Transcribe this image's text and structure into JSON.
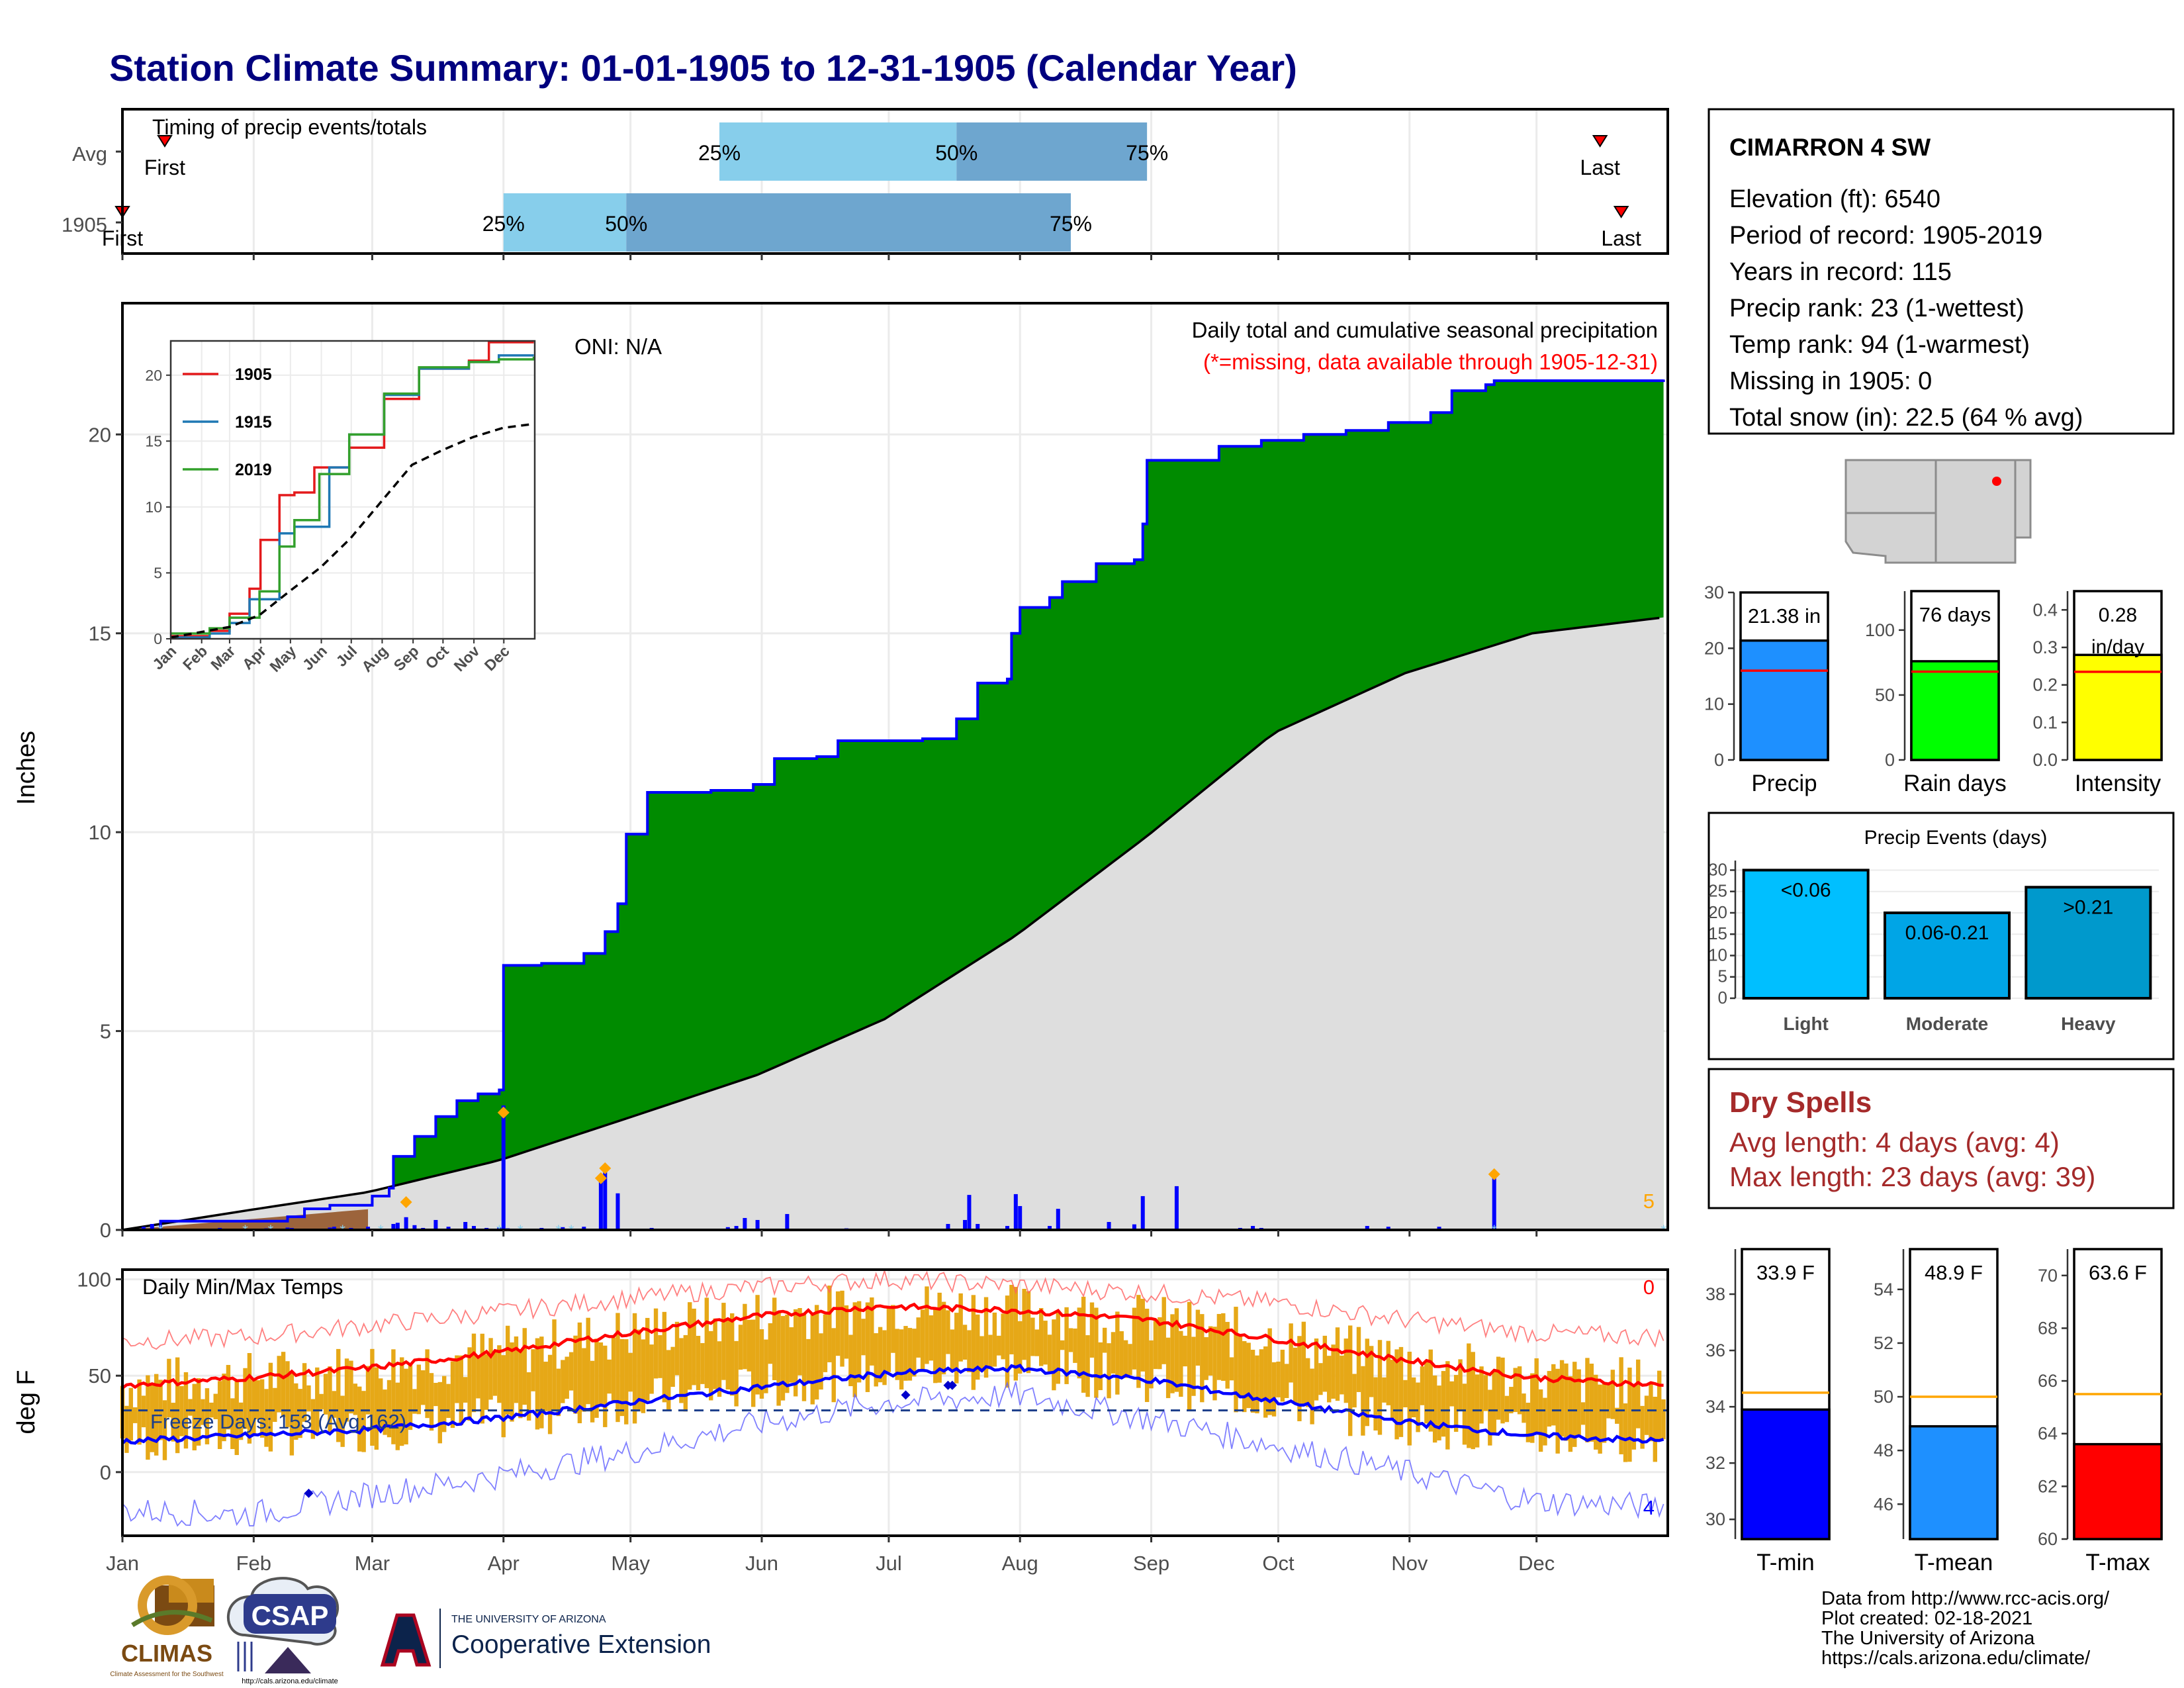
{
  "title": "Station Climate Summary: 01-01-1905 to 12-31-1905 (Calendar Year)",
  "colors": {
    "title": "#00007f",
    "green": "#008b00",
    "blue": "#0000ff",
    "grey": "#dedede",
    "q1": "#87ceeb",
    "q2": "#6ea6cf",
    "orange": "#ffa500",
    "red": "#ff0000",
    "gold": "#e6a817",
    "drySpell": "#a52a2a"
  },
  "timing": {
    "label": "Timing of precip events/totals",
    "rows": [
      {
        "name": "Avg",
        "first": "01-11",
        "last": "12-16",
        "q25": "05-22",
        "q50": "07-17",
        "q75": "08-31",
        "firstLabel": "First",
        "lastLabel": "Last"
      },
      {
        "name": "1905",
        "first": "01-01",
        "last": "12-21",
        "q25": "04-01",
        "q50": "04-30",
        "q75": "08-13",
        "firstLabel": "First",
        "lastLabel": "Last"
      }
    ],
    "pctLabels": [
      "25%",
      "50%",
      "75%"
    ]
  },
  "months": [
    "Jan",
    "Feb",
    "Mar",
    "Apr",
    "May",
    "Jun",
    "Jul",
    "Aug",
    "Sep",
    "Oct",
    "Nov",
    "Dec"
  ],
  "precip": {
    "ylabel": "Inches",
    "yticks": [
      0,
      5,
      10,
      15,
      20
    ],
    "ylim": [
      0,
      23.3
    ],
    "caption1": "Daily total and cumulative seasonal precipitation",
    "caption2": "(*=missing, data available through 1905-12-31)",
    "oni": "ONI: N/A",
    "cornerCount": "5",
    "chart_data": {
      "type": "area",
      "cumulative_1905": [
        [
          1,
          0
        ],
        [
          10,
          0.22
        ],
        [
          40,
          0.33
        ],
        [
          44,
          0.53
        ],
        [
          50,
          0.62
        ],
        [
          60,
          0.85
        ],
        [
          64,
          1.05
        ],
        [
          65,
          1.85
        ],
        [
          70,
          2.35
        ],
        [
          75,
          2.85
        ],
        [
          80,
          3.25
        ],
        [
          85,
          3.42
        ],
        [
          90,
          3.52
        ],
        [
          91,
          6.65
        ],
        [
          100,
          6.7
        ],
        [
          110,
          6.95
        ],
        [
          115,
          7.5
        ],
        [
          118,
          8.2
        ],
        [
          120,
          9.95
        ],
        [
          125,
          11.0
        ],
        [
          140,
          11.05
        ],
        [
          150,
          11.2
        ],
        [
          155,
          11.85
        ],
        [
          165,
          11.9
        ],
        [
          170,
          12.3
        ],
        [
          190,
          12.35
        ],
        [
          198,
          12.85
        ],
        [
          203,
          13.75
        ],
        [
          210,
          13.85
        ],
        [
          211,
          15.0
        ],
        [
          213,
          15.65
        ],
        [
          220,
          15.9
        ],
        [
          223,
          16.3
        ],
        [
          231,
          16.75
        ],
        [
          240,
          16.85
        ],
        [
          242,
          17.75
        ],
        [
          243,
          19.35
        ],
        [
          260,
          19.7
        ],
        [
          270,
          19.85
        ],
        [
          280,
          20.0
        ],
        [
          290,
          20.1
        ],
        [
          300,
          20.3
        ],
        [
          310,
          20.55
        ],
        [
          315,
          21.1
        ],
        [
          323,
          21.25
        ],
        [
          325,
          21.35
        ],
        [
          365,
          21.38
        ]
      ],
      "daily_bars": [
        [
          1,
          0.02
        ],
        [
          6,
          0.08
        ],
        [
          8,
          0.15
        ],
        [
          22,
          0.03
        ],
        [
          24,
          0.05
        ],
        [
          30,
          0.03
        ],
        [
          35,
          0.04
        ],
        [
          40,
          0.06
        ],
        [
          41,
          0.05
        ],
        [
          45,
          0.03
        ],
        [
          50,
          0.06
        ],
        [
          51,
          0.08
        ],
        [
          55,
          0.05
        ],
        [
          59,
          0.08
        ],
        [
          65,
          0.15
        ],
        [
          66,
          0.18
        ],
        [
          68,
          0.32
        ],
        [
          70,
          0.12
        ],
        [
          72,
          0.05
        ],
        [
          75,
          0.25
        ],
        [
          78,
          0.08
        ],
        [
          80,
          0.03
        ],
        [
          82,
          0.2
        ],
        [
          84,
          0.1
        ],
        [
          87,
          0.05
        ],
        [
          90,
          0.06
        ],
        [
          91,
          3.13
        ],
        [
          92,
          0.04
        ],
        [
          100,
          0.05
        ],
        [
          105,
          0.07
        ],
        [
          110,
          0.08
        ],
        [
          114,
          1.3
        ],
        [
          115,
          1.5
        ],
        [
          118,
          0.92
        ],
        [
          126,
          0.05
        ],
        [
          130,
          0.03
        ],
        [
          136,
          0.02
        ],
        [
          144,
          0.07
        ],
        [
          146,
          0.1
        ],
        [
          148,
          0.3
        ],
        [
          151,
          0.25
        ],
        [
          158,
          0.4
        ],
        [
          172,
          0.04
        ],
        [
          196,
          0.15
        ],
        [
          200,
          0.25
        ],
        [
          201,
          0.88
        ],
        [
          203,
          0.15
        ],
        [
          210,
          0.1
        ],
        [
          212,
          0.9
        ],
        [
          213,
          0.6
        ],
        [
          220,
          0.1
        ],
        [
          222,
          0.53
        ],
        [
          234,
          0.2
        ],
        [
          240,
          0.14
        ],
        [
          242,
          0.85
        ],
        [
          250,
          1.1
        ],
        [
          265,
          0.05
        ],
        [
          268,
          0.1
        ],
        [
          270,
          0.05
        ],
        [
          295,
          0.1
        ],
        [
          300,
          0.08
        ],
        [
          312,
          0.08
        ],
        [
          325,
          1.35
        ]
      ],
      "normal_cumulative": [
        [
          1,
          0
        ],
        [
          31,
          0.5
        ],
        [
          59,
          0.95
        ],
        [
          90,
          1.75
        ],
        [
          120,
          2.8
        ],
        [
          151,
          3.9
        ],
        [
          181,
          5.3
        ],
        [
          212,
          7.4
        ],
        [
          243,
          9.9
        ],
        [
          273,
          12.5
        ],
        [
          304,
          14.0
        ],
        [
          334,
          15.0
        ],
        [
          365,
          15.4
        ]
      ]
    },
    "markers": [
      [
        68,
        0.7
      ],
      [
        91,
        2.95
      ],
      [
        114,
        1.3
      ],
      [
        115,
        1.55
      ],
      [
        325,
        1.4
      ]
    ],
    "inset": {
      "yticks": [
        0,
        5,
        10,
        15,
        20
      ],
      "legend": [
        "1905",
        "1915",
        "2019"
      ],
      "series": [
        {
          "name": "1905",
          "color": "#e31a1c",
          "values": [
            [
              1,
              0.2
            ],
            [
              40,
              0.6
            ],
            [
              60,
              1.9
            ],
            [
              80,
              3.8
            ],
            [
              91,
              7.5
            ],
            [
              110,
              10.9
            ],
            [
              125,
              11.1
            ],
            [
              145,
              13.0
            ],
            [
              180,
              14.5
            ],
            [
              215,
              18.2
            ],
            [
              250,
              20.5
            ],
            [
              300,
              21.1
            ],
            [
              320,
              22.5
            ],
            [
              365,
              22.5
            ]
          ]
        },
        {
          "name": "1915",
          "color": "#1f78b4",
          "values": [
            [
              1,
              0.1
            ],
            [
              40,
              0.4
            ],
            [
              60,
              1.2
            ],
            [
              80,
              3.0
            ],
            [
              110,
              8.0
            ],
            [
              125,
              8.5
            ],
            [
              160,
              13.0
            ],
            [
              180,
              15.5
            ],
            [
              215,
              18.5
            ],
            [
              250,
              20.5
            ],
            [
              300,
              21.0
            ],
            [
              330,
              21.5
            ],
            [
              365,
              21.5
            ]
          ]
        },
        {
          "name": "2019",
          "color": "#33a02c",
          "values": [
            [
              1,
              0.4
            ],
            [
              40,
              0.8
            ],
            [
              60,
              1.6
            ],
            [
              90,
              3.6
            ],
            [
              110,
              7.0
            ],
            [
              125,
              9.0
            ],
            [
              150,
              12.5
            ],
            [
              180,
              15.5
            ],
            [
              215,
              18.6
            ],
            [
              250,
              20.6
            ],
            [
              300,
              21.0
            ],
            [
              330,
              21.2
            ],
            [
              365,
              21.4
            ]
          ]
        },
        {
          "name": "normal",
          "color": "#000000",
          "values": [
            [
              1,
              0.1
            ],
            [
              60,
              0.9
            ],
            [
              90,
              1.8
            ],
            [
              120,
              3.6
            ],
            [
              151,
              5.4
            ],
            [
              181,
              7.6
            ],
            [
              212,
              10.4
            ],
            [
              243,
              13.2
            ],
            [
              273,
              14.3
            ],
            [
              304,
              15.3
            ],
            [
              334,
              16.0
            ],
            [
              365,
              16.3
            ]
          ]
        }
      ]
    }
  },
  "temps": {
    "title": "Daily Min/Max Temps",
    "ylabel": "deg F",
    "yticks": [
      0,
      50,
      100
    ],
    "ylim": [
      -33,
      105
    ],
    "freeze": "Freeze Days: 153 (Avg:162)",
    "countTop": "0",
    "countBottom": "4",
    "chart_data": {
      "type": "line",
      "max_normal": [
        [
          1,
          45
        ],
        [
          31,
          49
        ],
        [
          59,
          54
        ],
        [
          90,
          62
        ],
        [
          120,
          72
        ],
        [
          151,
          81
        ],
        [
          181,
          86
        ],
        [
          212,
          84
        ],
        [
          243,
          79
        ],
        [
          273,
          69
        ],
        [
          304,
          58
        ],
        [
          334,
          49
        ],
        [
          365,
          45
        ]
      ],
      "min_normal": [
        [
          1,
          16
        ],
        [
          31,
          19
        ],
        [
          59,
          22
        ],
        [
          90,
          28
        ],
        [
          120,
          36
        ],
        [
          151,
          44
        ],
        [
          181,
          51
        ],
        [
          212,
          54
        ],
        [
          243,
          48
        ],
        [
          273,
          37
        ],
        [
          304,
          26
        ],
        [
          334,
          19
        ],
        [
          365,
          16
        ]
      ],
      "max_record": [
        [
          1,
          68
        ],
        [
          31,
          70
        ],
        [
          59,
          76
        ],
        [
          90,
          83
        ],
        [
          120,
          90
        ],
        [
          151,
          96
        ],
        [
          181,
          100
        ],
        [
          212,
          97
        ],
        [
          243,
          93
        ],
        [
          273,
          88
        ],
        [
          304,
          79
        ],
        [
          334,
          72
        ],
        [
          365,
          70
        ]
      ],
      "min_record": [
        [
          1,
          -20
        ],
        [
          31,
          -22
        ],
        [
          59,
          -12
        ],
        [
          90,
          -2
        ],
        [
          120,
          10
        ],
        [
          151,
          25
        ],
        [
          181,
          36
        ],
        [
          212,
          40
        ],
        [
          243,
          28
        ],
        [
          273,
          14
        ],
        [
          304,
          0
        ],
        [
          334,
          -15
        ],
        [
          365,
          -18
        ]
      ],
      "freeze_line": 32,
      "record_marks": [
        [
          45,
          -11
        ],
        [
          186,
          40
        ],
        [
          196,
          45
        ],
        [
          197,
          45
        ]
      ]
    }
  },
  "station": {
    "name": "CIMARRON 4 SW",
    "lines": [
      "Elevation (ft): 6540",
      "Period of record: 1905-2019",
      "Years in record: 115",
      "Precip rank: 23 (1-wettest)",
      "Temp rank: 94 (1-warmest)",
      "Missing in 1905: 0",
      "Total snow (in): 22.5 (64 % avg)"
    ]
  },
  "miniCharts": [
    {
      "name": "Precip",
      "label": "21.38 in",
      "value": 21.38,
      "normal": 16,
      "ylim": [
        0,
        30
      ],
      "yticks": [
        "0",
        "10",
        "20",
        "30"
      ],
      "color": "#1e90ff"
    },
    {
      "name": "Rain days",
      "label": "76 days",
      "value": 76,
      "normal": 68,
      "ylim": [
        0,
        130
      ],
      "yticks": [
        "0",
        "50",
        "100"
      ],
      "color": "#00ff00"
    },
    {
      "name": "Intensity",
      "label": "0.28 in/day",
      "value": 0.28,
      "normal": 0.235,
      "ylim": [
        0,
        0.45
      ],
      "yticks": [
        "0.0",
        "0.1",
        "0.2",
        "0.3",
        "0.4"
      ],
      "color": "#ffff00"
    }
  ],
  "events": {
    "title": "Precip Events (days)",
    "yticks": [
      "0",
      "5",
      "10",
      "15",
      "20",
      "25",
      "30"
    ],
    "ylim": [
      0,
      31
    ],
    "chart_data": {
      "type": "bar",
      "categories": [
        "Light",
        "Moderate",
        "Heavy"
      ],
      "labels": [
        "<0.06",
        "0.06-0.21",
        ">0.21"
      ],
      "values": [
        30,
        20,
        26
      ],
      "colors": [
        "#00bfff",
        "#00a5e6",
        "#0099cc"
      ]
    }
  },
  "drySpells": {
    "title": "Dry Spells",
    "avg": "Avg length: 4 days (avg: 4)",
    "max": "Max length: 23 days (avg: 39)"
  },
  "tempBars": [
    {
      "name": "T-min",
      "label": "33.9 F",
      "value": 33.9,
      "normal": 34.5,
      "ylim": [
        29.3,
        39.6
      ],
      "yticks": [
        "30",
        "32",
        "34",
        "36",
        "38"
      ],
      "color": "#0000ff"
    },
    {
      "name": "T-mean",
      "label": "48.9 F",
      "value": 48.9,
      "normal": 50,
      "ylim": [
        44.7,
        55.5
      ],
      "yticks": [
        "46",
        "48",
        "50",
        "52",
        "54"
      ],
      "color": "#1e90ff"
    },
    {
      "name": "T-max",
      "label": "63.6 F",
      "value": 63.6,
      "normal": 65.5,
      "ylim": [
        60,
        71
      ],
      "yticks": [
        "60",
        "62",
        "64",
        "66",
        "68",
        "70"
      ],
      "color": "#ff0000"
    }
  ],
  "footer": [
    "Data from http://www.rcc-acis.org/",
    "Plot created: 02-18-2021",
    "The University of Arizona",
    "https://cals.arizona.edu/climate/"
  ],
  "logos": {
    "climas": "CLIMAS",
    "climasSub": "Climate Assessment for the Southwest",
    "csap": "CSAP",
    "csapUrl": "http://cals.arizona.edu/climate",
    "uaTop": "THE UNIVERSITY OF ARIZONA",
    "uaMain": "Cooperative Extension"
  }
}
